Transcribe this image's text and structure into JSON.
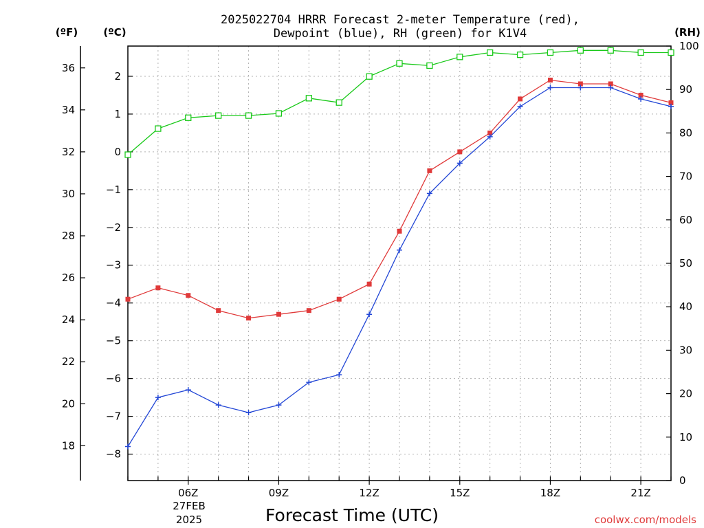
{
  "chart_data": {
    "type": "line",
    "title_line1": "2025022704 HRRR Forecast 2-meter Temperature (red),",
    "title_line2": "Dewpoint (blue), RH (green) for K1V4",
    "unit_f": "(ºF)",
    "unit_c": "(ºC)",
    "unit_rh": "(RH)",
    "xlabel": "Forecast Time (UTC)",
    "credit": "coolwx.com/models",
    "date_label_line1": "27FEB",
    "date_label_line2": "2025",
    "x_hours": [
      4,
      5,
      6,
      7,
      8,
      9,
      10,
      11,
      12,
      13,
      14,
      15,
      16,
      17,
      18,
      19,
      20,
      21,
      22
    ],
    "x_range": [
      4,
      22
    ],
    "x_ticks": [
      {
        "hour": 6,
        "label": "06Z"
      },
      {
        "hour": 9,
        "label": "09Z"
      },
      {
        "hour": 12,
        "label": "12Z"
      },
      {
        "hour": 15,
        "label": "15Z"
      },
      {
        "hour": 18,
        "label": "18Z"
      },
      {
        "hour": 21,
        "label": "21Z"
      }
    ],
    "y_left_c_range": [
      -8.7,
      2.8
    ],
    "y_left_c_ticks": [
      -8,
      -7,
      -6,
      -5,
      -4,
      -3,
      -2,
      -1,
      0,
      1,
      2
    ],
    "y_left_c_tick_labels": [
      "−8",
      "−7",
      "−6",
      "−5",
      "−4",
      "−3",
      "−2",
      "−1",
      "0",
      "1",
      "2"
    ],
    "y_f_ticks": [
      18,
      20,
      22,
      24,
      26,
      28,
      30,
      32,
      34,
      36
    ],
    "y_f_tick_labels": [
      "18",
      "20",
      "22",
      "24",
      "26",
      "28",
      "30",
      "32",
      "34",
      "36"
    ],
    "y_right_rh_range": [
      0,
      100
    ],
    "y_right_rh_ticks": [
      0,
      10,
      20,
      30,
      40,
      50,
      60,
      70,
      80,
      90,
      100
    ],
    "y_right_rh_tick_labels": [
      "0",
      "10",
      "20",
      "30",
      "40",
      "50",
      "60",
      "70",
      "80",
      "90",
      "100"
    ],
    "grid": true,
    "colors": {
      "temperature": "#e03a3a",
      "dewpoint": "#2347d6",
      "rh": "#19c919",
      "grid": "#b0b0b0",
      "credit": "#e03a3a"
    },
    "series": [
      {
        "key": "temperature",
        "axis": "celsius",
        "marker": "filled-square",
        "values": [
          -3.9,
          -3.6,
          -3.8,
          -4.2,
          -4.4,
          -4.3,
          -4.2,
          -3.9,
          -3.5,
          -2.1,
          -0.5,
          0.0,
          0.5,
          1.4,
          1.9,
          1.8,
          1.8,
          1.5,
          1.3
        ]
      },
      {
        "key": "dewpoint",
        "axis": "celsius",
        "marker": "plus",
        "values": [
          -7.8,
          -6.5,
          -6.3,
          -6.7,
          -6.9,
          -6.7,
          -6.1,
          -5.9,
          -4.3,
          -2.6,
          -1.1,
          -0.3,
          0.4,
          1.2,
          1.7,
          1.7,
          1.7,
          1.4,
          1.2
        ]
      },
      {
        "key": "rh",
        "axis": "rh",
        "marker": "open-square",
        "values": [
          75,
          81,
          83.5,
          84,
          84,
          84.5,
          88,
          87,
          93,
          96,
          95.5,
          97.5,
          98.5,
          98,
          98.5,
          99,
          99,
          98.5,
          98.5
        ]
      }
    ]
  }
}
